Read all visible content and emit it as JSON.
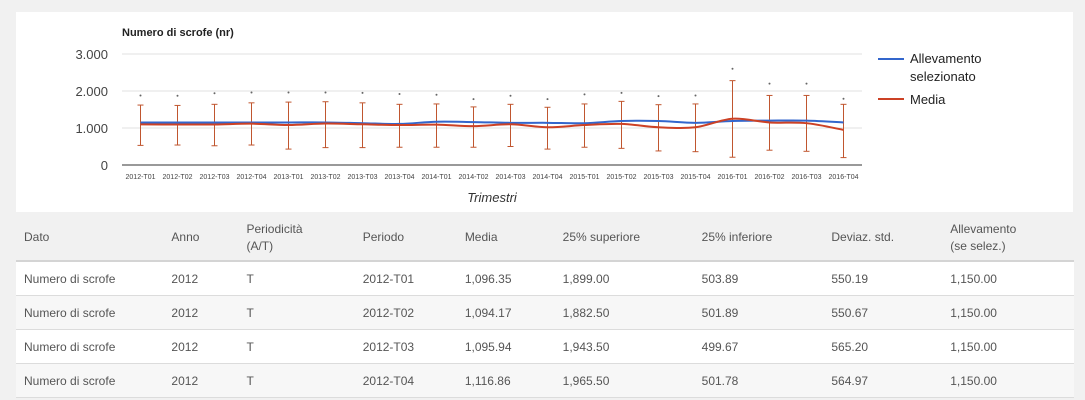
{
  "chart_data": {
    "type": "line",
    "title": "Numero di scrofe (nr)",
    "xlabel": "Trimestri",
    "ylabel": "",
    "ylim": [
      0,
      3000
    ],
    "y_ticks": [
      "3.000",
      "2.000",
      "1.000",
      "0"
    ],
    "y_tick_values": [
      3000,
      2000,
      1000,
      0
    ],
    "categories": [
      "2012-T01",
      "2012-T02",
      "2012-T03",
      "2012-T04",
      "2013-T01",
      "2013-T02",
      "2013-T03",
      "2013-T04",
      "2014-T01",
      "2014-T02",
      "2014-T03",
      "2014-T04",
      "2015-T01",
      "2015-T02",
      "2015-T03",
      "2015-T04",
      "2016-T01",
      "2016-T02",
      "2016-T03",
      "2016-T04"
    ],
    "legend_position": "right",
    "series": [
      {
        "name": "Allevamento selezionato",
        "color": "#3366cc",
        "values": [
          1150,
          1150,
          1150,
          1150,
          1150,
          1150,
          1130,
          1110,
          1170,
          1160,
          1140,
          1140,
          1130,
          1190,
          1190,
          1140,
          1190,
          1200,
          1200,
          1150
        ]
      },
      {
        "name": "Media",
        "color": "#cc4125",
        "values": [
          1096.35,
          1094.17,
          1095.94,
          1116.86,
          1080,
          1120,
          1100,
          1080,
          1090,
          1050,
          1100,
          1020,
          1080,
          1110,
          1020,
          1020,
          1250,
          1150,
          1130,
          950
        ]
      }
    ],
    "error_bars": {
      "series": "Media",
      "color": "#c0562f",
      "upper": [
        1620,
        1610,
        1640,
        1680,
        1700,
        1710,
        1680,
        1640,
        1650,
        1570,
        1640,
        1560,
        1650,
        1720,
        1630,
        1650,
        2280,
        1880,
        1880,
        1640
      ],
      "lower": [
        530,
        540,
        520,
        540,
        430,
        470,
        470,
        480,
        480,
        480,
        500,
        430,
        480,
        450,
        380,
        360,
        210,
        400,
        370,
        200
      ]
    },
    "top_markers": [
      1880,
      1870,
      1940,
      1960,
      1960,
      1960,
      1950,
      1920,
      1900,
      1780,
      1870,
      1780,
      1910,
      1950,
      1860,
      1880,
      2600,
      2200,
      2200,
      1790
    ]
  },
  "table": {
    "headers": [
      [
        "Dato"
      ],
      [
        "Anno"
      ],
      [
        "Periodicità",
        "(A/T)"
      ],
      [
        "Periodo"
      ],
      [
        "Media"
      ],
      [
        "25% superiore"
      ],
      [
        "25% inferiore"
      ],
      [
        "Deviaz. std."
      ],
      [
        "Allevamento",
        "(se selez.)"
      ]
    ],
    "rows": [
      [
        "Numero di scrofe",
        "2012",
        "T",
        "2012-T01",
        "1,096.35",
        "1,899.00",
        "503.89",
        "550.19",
        "1,150.00"
      ],
      [
        "Numero di scrofe",
        "2012",
        "T",
        "2012-T02",
        "1,094.17",
        "1,882.50",
        "501.89",
        "550.67",
        "1,150.00"
      ],
      [
        "Numero di scrofe",
        "2012",
        "T",
        "2012-T03",
        "1,095.94",
        "1,943.50",
        "499.67",
        "565.20",
        "1,150.00"
      ],
      [
        "Numero di scrofe",
        "2012",
        "T",
        "2012-T04",
        "1,116.86",
        "1,965.50",
        "501.78",
        "564.97",
        "1,150.00"
      ]
    ]
  }
}
